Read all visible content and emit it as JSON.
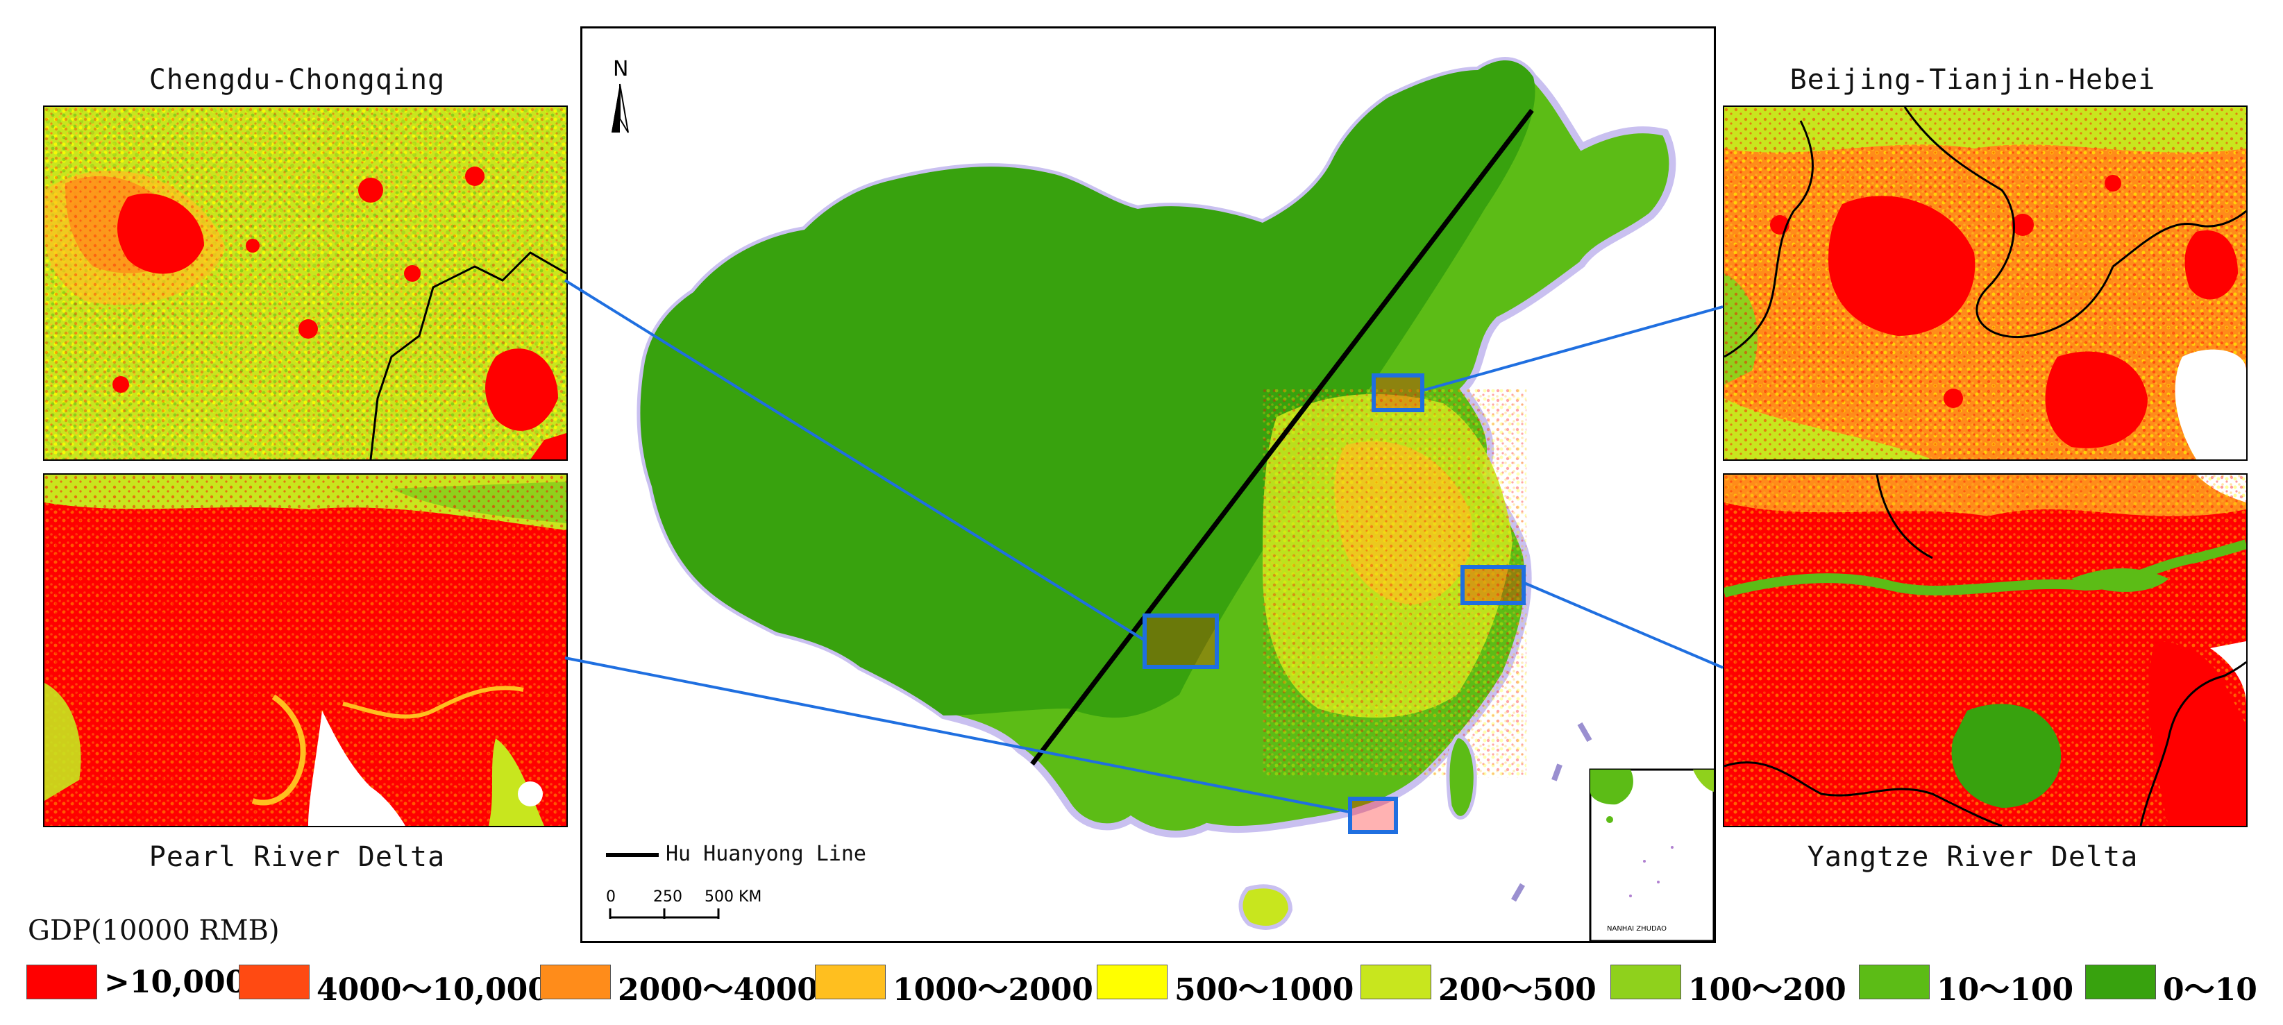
{
  "insets": {
    "top_left": "Chengdu-Chongqing",
    "bottom_left": "Pearl River Delta",
    "top_right": "Beijing-Tianjin-Hebei",
    "bottom_right": "Yangtze River Delta"
  },
  "map": {
    "north_label": "N",
    "line_legend": "Hu Huanyong Line",
    "scale_ticks": [
      "0",
      "250",
      "500 KM"
    ],
    "south_china_sea_label": "NANHAI ZHUDAO"
  },
  "legend": {
    "title": "GDP(10000 RMB)",
    "items": [
      {
        "label": ">10,000",
        "color": "#ff0000"
      },
      {
        "label": "4000～10,000",
        "color": "#ff4a12"
      },
      {
        "label": "2000～4000",
        "color": "#ff8c1a"
      },
      {
        "label": "1000～2000",
        "color": "#ffbf1f"
      },
      {
        "label": "500～1000",
        "color": "#ffff00"
      },
      {
        "label": "200～500",
        "color": "#c8e61e"
      },
      {
        "label": "100～200",
        "color": "#8fd11c"
      },
      {
        "label": "10～100",
        "color": "#5cbc16"
      },
      {
        "label": "0～10",
        "color": "#38a20e"
      }
    ]
  }
}
